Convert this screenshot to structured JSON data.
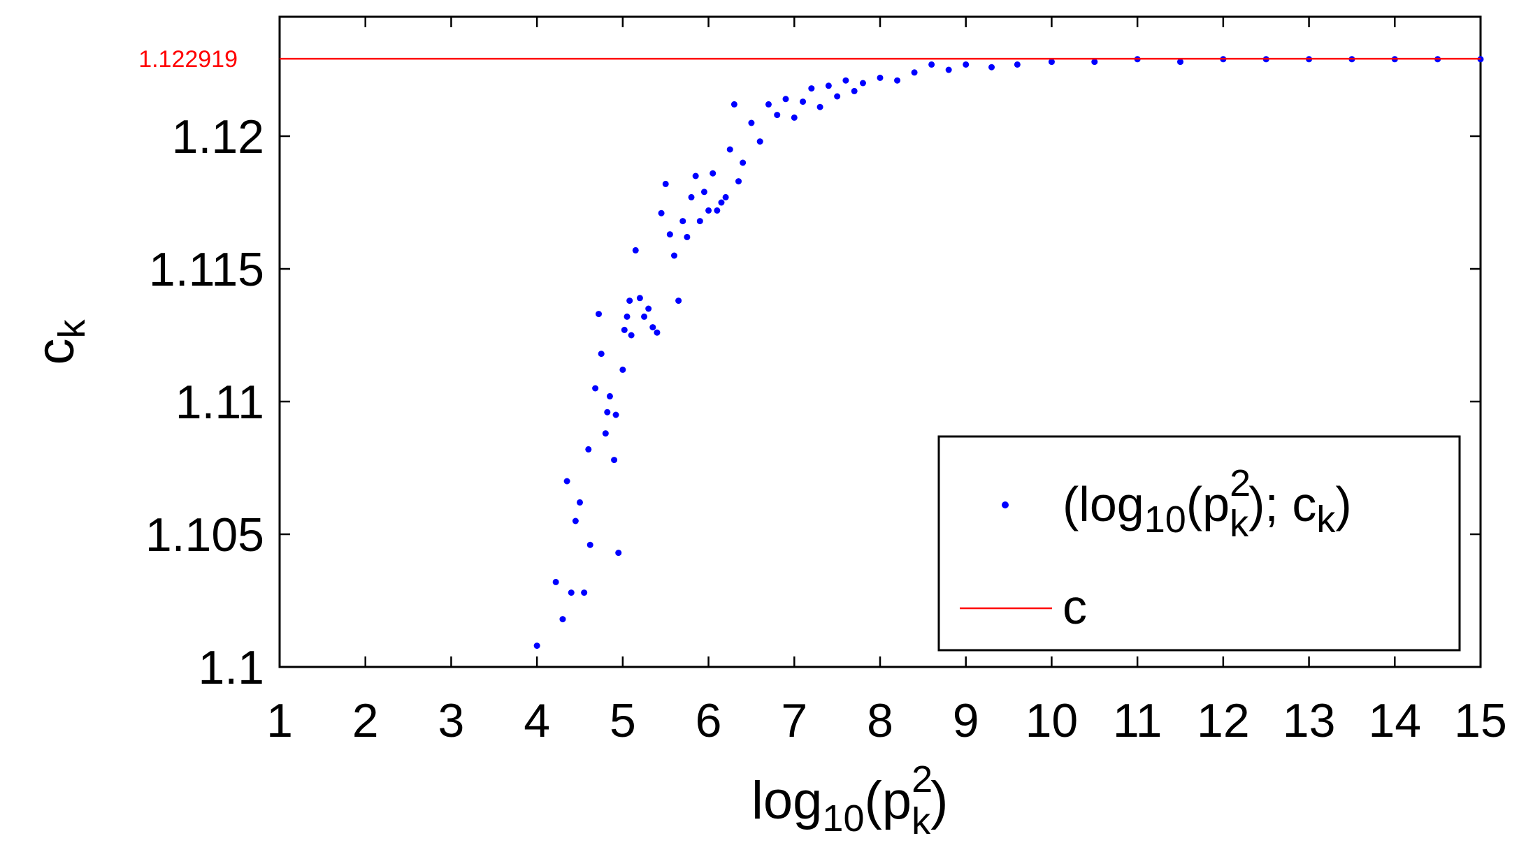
{
  "chart_data": {
    "type": "scatter",
    "title": "",
    "xlabel": {
      "base": "log",
      "sub1": "10",
      "open": "(p",
      "sup": "2",
      "sub2": "k",
      "close": ")"
    },
    "ylabel": {
      "base": "c",
      "sub": "k"
    },
    "xlim": [
      1,
      15
    ],
    "ylim": [
      1.1,
      1.1245
    ],
    "xticks": [
      1,
      2,
      3,
      4,
      5,
      6,
      7,
      8,
      9,
      10,
      11,
      12,
      13,
      14,
      15
    ],
    "xtick_labels": [
      "1",
      "2",
      "3",
      "4",
      "5",
      "6",
      "7",
      "8",
      "9",
      "10",
      "11",
      "12",
      "13",
      "14",
      "15"
    ],
    "yticks": [
      1.1,
      1.105,
      1.11,
      1.115,
      1.12
    ],
    "ytick_labels": [
      "1.1",
      "1.105",
      "1.11",
      "1.115",
      "1.12"
    ],
    "reference_line": {
      "value": 1.122919,
      "label": "1.122919",
      "color": "#ff0000",
      "name": "c"
    },
    "series": [
      {
        "name": "(log10(p_k^2); c_k)",
        "color": "#0000ff",
        "marker": "dot",
        "x": [
          4.0,
          4.22,
          4.3,
          4.35,
          4.4,
          4.45,
          4.5,
          4.55,
          4.6,
          4.62,
          4.68,
          4.72,
          4.75,
          4.8,
          4.82,
          4.85,
          4.9,
          4.92,
          4.95,
          5.0,
          5.02,
          5.05,
          5.08,
          5.1,
          5.15,
          5.2,
          5.25,
          5.3,
          5.35,
          5.4,
          5.45,
          5.5,
          5.55,
          5.6,
          5.65,
          5.7,
          5.75,
          5.8,
          5.85,
          5.9,
          5.95,
          6.0,
          6.05,
          6.1,
          6.15,
          6.2,
          6.25,
          6.3,
          6.35,
          6.4,
          6.5,
          6.6,
          6.7,
          6.8,
          6.9,
          7.0,
          7.1,
          7.2,
          7.3,
          7.4,
          7.5,
          7.6,
          7.7,
          7.8,
          8.0,
          8.2,
          8.4,
          8.6,
          8.8,
          9.0,
          9.3,
          9.6,
          10.0,
          10.5,
          11.0,
          11.5,
          12.0,
          12.5,
          13.0,
          13.5,
          14.0,
          14.5,
          15.0
        ],
        "y": [
          1.1008,
          1.1032,
          1.1018,
          1.107,
          1.1028,
          1.1055,
          1.1062,
          1.1028,
          1.1082,
          1.1046,
          1.1105,
          1.1133,
          1.1118,
          1.1088,
          1.1096,
          1.1102,
          1.1078,
          1.1095,
          1.1043,
          1.1112,
          1.1127,
          1.1132,
          1.1138,
          1.1125,
          1.1157,
          1.1139,
          1.1132,
          1.1135,
          1.1128,
          1.1126,
          1.1171,
          1.1182,
          1.1163,
          1.1155,
          1.1138,
          1.1168,
          1.1162,
          1.1177,
          1.1185,
          1.1168,
          1.1179,
          1.1172,
          1.1186,
          1.1172,
          1.1175,
          1.1177,
          1.1195,
          1.1212,
          1.1183,
          1.119,
          1.1205,
          1.1198,
          1.1212,
          1.1208,
          1.1214,
          1.1207,
          1.1213,
          1.1218,
          1.1211,
          1.1219,
          1.1215,
          1.1221,
          1.1217,
          1.122,
          1.1222,
          1.1221,
          1.1224,
          1.1227,
          1.1225,
          1.1227,
          1.1226,
          1.1227,
          1.1228,
          1.1228,
          1.1229,
          1.1228,
          1.1229,
          1.1229,
          1.1229,
          1.1229,
          1.1229,
          1.1229,
          1.1229
        ]
      }
    ],
    "legend": {
      "placement": "bottom-right",
      "entries": [
        {
          "text": {
            "open": "(log",
            "sub1": "10",
            "mid": "(p",
            "sup": "2",
            "sub2": "k",
            "after": "); c",
            "sub3": "k",
            "close": ")"
          }
        },
        {
          "text": "c"
        }
      ]
    }
  }
}
